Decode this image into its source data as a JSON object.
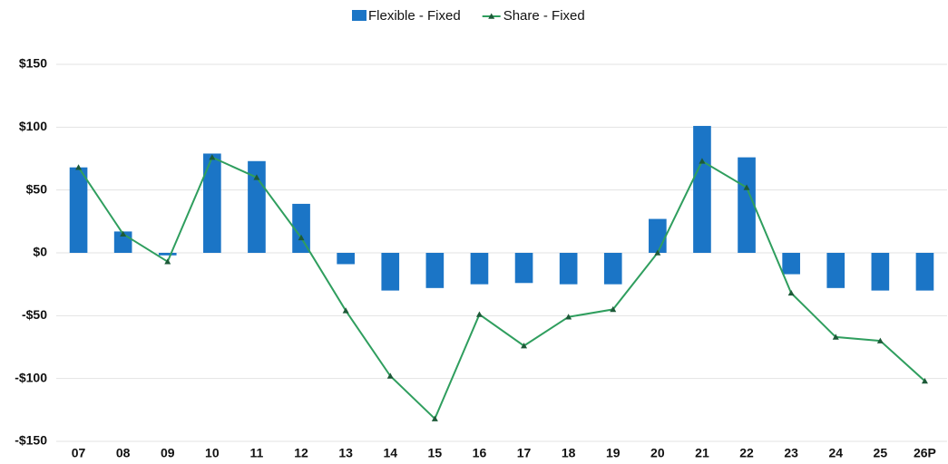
{
  "chart_data": {
    "type": "bar-line",
    "categories": [
      "07",
      "08",
      "09",
      "10",
      "11",
      "12",
      "13",
      "14",
      "15",
      "16",
      "17",
      "18",
      "19",
      "20",
      "21",
      "22",
      "23",
      "24",
      "25",
      "26P"
    ],
    "series": [
      {
        "name": "Flexible - Fixed",
        "type": "bar",
        "color": "#1b75c6",
        "values": [
          68,
          17,
          -2,
          79,
          73,
          39,
          -9,
          -30,
          -28,
          -25,
          -24,
          -25,
          -25,
          27,
          101,
          76,
          -17,
          -28,
          -30,
          -30
        ]
      },
      {
        "name": "Share - Fixed",
        "type": "line",
        "color": "#2f9e5e",
        "marker_color": "#1d5a38",
        "values": [
          68,
          15,
          -7,
          76,
          60,
          12,
          -46,
          -98,
          -132,
          -49,
          -74,
          -51,
          -45,
          0,
          73,
          52,
          -32,
          -67,
          -70,
          -102
        ]
      }
    ],
    "ylim": [
      -150,
      150
    ],
    "yticks": [
      {
        "value": -150,
        "label": "-$150"
      },
      {
        "value": -100,
        "label": "-$100"
      },
      {
        "value": -50,
        "label": "-$50"
      },
      {
        "value": 0,
        "label": "$0"
      },
      {
        "value": 50,
        "label": "$50"
      },
      {
        "value": 100,
        "label": "$100"
      },
      {
        "value": 150,
        "label": "$150"
      }
    ],
    "grid": true,
    "legend": "top"
  }
}
